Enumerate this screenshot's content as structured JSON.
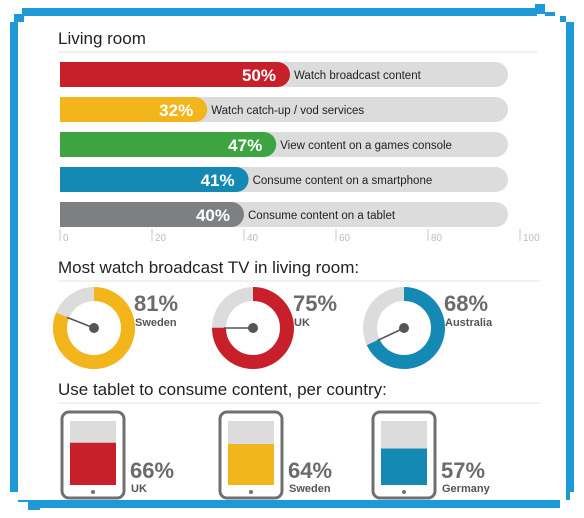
{
  "section1": {
    "title": "Living room",
    "chart_data": {
      "type": "bar",
      "orientation": "horizontal",
      "categories": [
        "Watch broadcast content",
        "Watch catch-up / vod services",
        "View content on a games console",
        "Consume content on a smartphone",
        "Consume content on a tablet"
      ],
      "values": [
        50,
        32,
        47,
        41,
        40
      ],
      "value_labels": [
        "50%",
        "32%",
        "47%",
        "41%",
        "40%"
      ],
      "colors": [
        "#c8202a",
        "#f2b51c",
        "#3da441",
        "#1489b3",
        "#7d7f82"
      ],
      "xlim": [
        0,
        100
      ],
      "xticks": [
        "0",
        "20",
        "40",
        "60",
        "80",
        "100"
      ]
    }
  },
  "section2": {
    "title": "Most watch broadcast TV in living room:",
    "chart_data": {
      "type": "pie",
      "items": [
        {
          "value": 81,
          "label": "81%",
          "country": "Sweden",
          "color": "#f2b51c"
        },
        {
          "value": 75,
          "label": "75%",
          "country": "UK",
          "color": "#c8202a"
        },
        {
          "value": 68,
          "label": "68%",
          "country": "Australia",
          "color": "#1489b3"
        }
      ]
    }
  },
  "section3": {
    "title": "Use tablet to consume content, per country:",
    "chart_data": {
      "type": "bar",
      "items": [
        {
          "value": 66,
          "label": "66%",
          "country": "UK",
          "color": "#c8202a"
        },
        {
          "value": 64,
          "label": "64%",
          "country": "Sweden",
          "color": "#f2b51c"
        },
        {
          "value": 57,
          "label": "57%",
          "country": "Germany",
          "color": "#1489b3"
        }
      ]
    }
  }
}
